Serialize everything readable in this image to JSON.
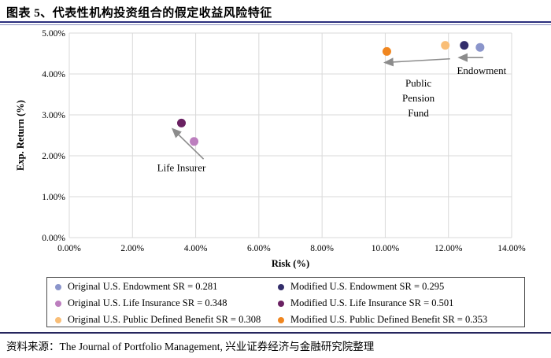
{
  "header": {
    "title": "图表 5、代表性机构投资组合的假定收益风险特征"
  },
  "footer": {
    "source_label": "资料来源：",
    "source_text": "The Journal of Portfolio Management, 兴业证券经济与金融研究院整理"
  },
  "colors": {
    "original_endowment": "#8B95CB",
    "modified_endowment": "#332E6B",
    "original_life": "#BC7EBE",
    "modified_life": "#6A2162",
    "original_pdb": "#F9BE77",
    "modified_pdb": "#F0861F",
    "gridline": "#D9D9D9",
    "arrow": "#8C8C8C",
    "rule_navy": "#2B2F7D"
  },
  "chart_data": {
    "type": "scatter",
    "title": "",
    "xlabel": "Risk (%)",
    "ylabel": "Exp. Return (%)",
    "xlim": [
      0,
      14
    ],
    "ylim": [
      0,
      5
    ],
    "grid": true,
    "x_ticks": {
      "values": [
        0,
        2,
        4,
        6,
        8,
        10,
        12,
        14
      ],
      "labels": [
        "0.00%",
        "2.00%",
        "4.00%",
        "6.00%",
        "8.00%",
        "10.00%",
        "12.00%",
        "14.00%"
      ]
    },
    "y_ticks": {
      "values": [
        0,
        1,
        2,
        3,
        4,
        5
      ],
      "labels": [
        "0.00%",
        "1.00%",
        "2.00%",
        "3.00%",
        "4.00%",
        "5.00%"
      ]
    },
    "series": [
      {
        "name": "Original U.S. Endowment",
        "sr": 0.281,
        "color": "#8B95CB",
        "points": [
          {
            "x": 13.0,
            "y": 4.65
          }
        ]
      },
      {
        "name": "Modified U.S. Endowment",
        "sr": 0.295,
        "color": "#332E6B",
        "points": [
          {
            "x": 12.5,
            "y": 4.7
          }
        ]
      },
      {
        "name": "Original U.S. Life Insurance",
        "sr": 0.348,
        "color": "#BC7EBE",
        "points": [
          {
            "x": 3.95,
            "y": 2.35
          }
        ]
      },
      {
        "name": "Modified U.S. Life Insurance",
        "sr": 0.501,
        "color": "#6A2162",
        "points": [
          {
            "x": 3.55,
            "y": 2.8
          }
        ]
      },
      {
        "name": "Original U.S. Public Defined Benefit",
        "sr": 0.308,
        "color": "#F9BE77",
        "points": [
          {
            "x": 11.9,
            "y": 4.7
          }
        ]
      },
      {
        "name": "Modified U.S. Public Defined Benefit",
        "sr": 0.353,
        "color": "#F0861F",
        "points": [
          {
            "x": 10.05,
            "y": 4.55
          }
        ]
      }
    ],
    "annotations": {
      "labels": [
        {
          "name": "life-insurer-label",
          "lines": [
            "Life Insurer"
          ],
          "x": 3.55,
          "y": 1.7
        },
        {
          "name": "public-pension-fund-label",
          "lines": [
            "Public",
            "Pension",
            "Fund"
          ],
          "x": 11.05,
          "y": 3.4
        },
        {
          "name": "endowment-label",
          "lines": [
            "Endowment"
          ],
          "x": 13.05,
          "y": 4.08
        }
      ],
      "arrows": [
        {
          "name": "life-insurer-arrow",
          "x1": 4.25,
          "y1": 1.92,
          "x2": 3.28,
          "y2": 2.65
        },
        {
          "name": "public-pension-arrow",
          "x1": 12.05,
          "y1": 4.37,
          "x2": 10.0,
          "y2": 4.28
        },
        {
          "name": "endowment-arrow",
          "x1": 13.1,
          "y1": 4.4,
          "x2": 12.35,
          "y2": 4.4
        }
      ]
    },
    "legend_position": "bottom"
  },
  "legend": {
    "items": [
      {
        "label": "Original U.S. Endowment SR = 0.281",
        "color": "#8B95CB"
      },
      {
        "label": "Modified U.S. Endowment SR = 0.295",
        "color": "#332E6B"
      },
      {
        "label": "Original U.S. Life Insurance SR = 0.348",
        "color": "#BC7EBE"
      },
      {
        "label": "Modified U.S. Life Insurance SR = 0.501",
        "color": "#6A2162"
      },
      {
        "label": "Original U.S. Public Defined Benefit SR = 0.308",
        "color": "#F9BE77"
      },
      {
        "label": "Modified U.S. Public Defined Benefit SR = 0.353",
        "color": "#F0861F"
      }
    ]
  }
}
